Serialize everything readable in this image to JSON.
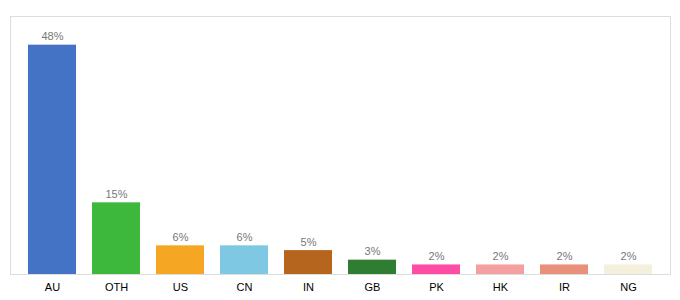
{
  "chart_data": {
    "type": "bar",
    "categories": [
      "AU",
      "OTH",
      "US",
      "CN",
      "IN",
      "GB",
      "PK",
      "HK",
      "IR",
      "NG"
    ],
    "values": [
      48,
      15,
      6,
      6,
      5,
      3,
      2,
      2,
      2,
      2
    ],
    "value_labels": [
      "48%",
      "15%",
      "6%",
      "6%",
      "5%",
      "3%",
      "2%",
      "2%",
      "2%",
      "2%"
    ],
    "colors": [
      "#4472c4",
      "#3db83d",
      "#f5a623",
      "#7ec8e3",
      "#b5651d",
      "#2e7d32",
      "#ff4da6",
      "#f4a0a0",
      "#e8907a",
      "#f5f0dc"
    ],
    "ylim": [
      0,
      54
    ],
    "data_labels": true,
    "tick_labels": "x",
    "grid": false
  }
}
